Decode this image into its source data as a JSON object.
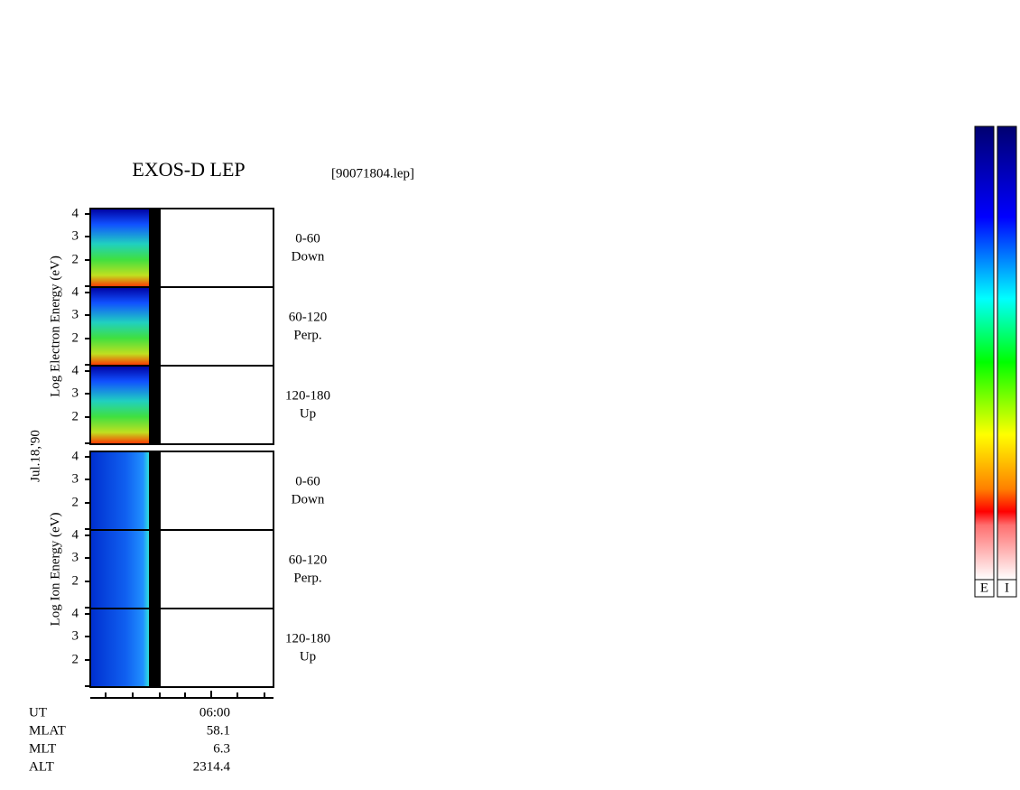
{
  "header": {
    "title": "EXOS-D LEP",
    "file": "[90071804.lep]"
  },
  "date": "Jul.18,'90",
  "groups": [
    {
      "ylabel": "Log  Electron  Energy (eV)",
      "kind": "electron",
      "panels": [
        {
          "yticks": [
            "4",
            "3",
            "2"
          ],
          "label": [
            "0-60",
            "Down"
          ]
        },
        {
          "yticks": [
            "4",
            "3",
            "2"
          ],
          "label": [
            "60-120",
            "Perp."
          ]
        },
        {
          "yticks": [
            "4",
            "3",
            "2"
          ],
          "label": [
            "120-180",
            "Up"
          ]
        }
      ]
    },
    {
      "ylabel": "Log  Ion  Energy (eV)",
      "kind": "ion",
      "panels": [
        {
          "yticks": [
            "4",
            "3",
            "2"
          ],
          "label": [
            "0-60",
            "Down"
          ]
        },
        {
          "yticks": [
            "4",
            "3",
            "2"
          ],
          "label": [
            "60-120",
            "Perp."
          ]
        },
        {
          "yticks": [
            "4",
            "3",
            "2"
          ],
          "label": [
            "120-180",
            "Up"
          ]
        }
      ]
    }
  ],
  "footer": {
    "rows": [
      {
        "name": "UT",
        "value": "06:00"
      },
      {
        "name": "MLAT",
        "value": "58.1"
      },
      {
        "name": "MLT",
        "value": "6.3"
      },
      {
        "name": "ALT",
        "value": "2314.4"
      }
    ]
  },
  "colorbars": [
    "E",
    "I"
  ]
}
